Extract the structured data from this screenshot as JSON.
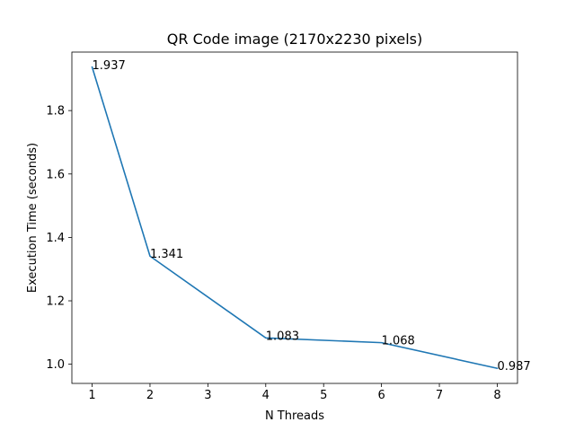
{
  "chart_data": {
    "type": "line",
    "title": "QR Code image (2170x2230 pixels)",
    "xlabel": "N Threads",
    "ylabel": "Execution Time (seconds)",
    "xlim": [
      0.65,
      8.35
    ],
    "ylim": [
      0.9395,
      1.9845
    ],
    "xticks": [
      1,
      2,
      3,
      4,
      5,
      6,
      7,
      8
    ],
    "yticks": [
      1.0,
      1.2,
      1.4,
      1.6,
      1.8
    ],
    "grid": false,
    "legend": "none",
    "series": [
      {
        "color": "#1f77b4",
        "x": [
          1,
          2,
          4,
          6,
          8
        ],
        "y": [
          1.937,
          1.341,
          1.083,
          1.068,
          0.987
        ],
        "labels": [
          "1.937",
          "1.341",
          "1.083",
          "1.068",
          "0.987"
        ]
      }
    ]
  }
}
